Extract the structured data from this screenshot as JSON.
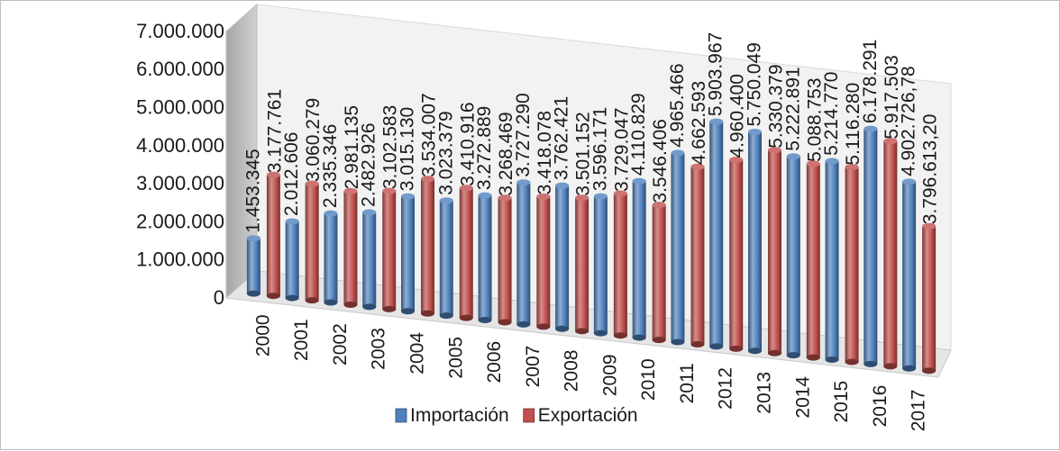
{
  "chart_data": {
    "type": "bar",
    "categories": [
      "2000",
      "2001",
      "2002",
      "2003",
      "2004",
      "2005",
      "2006",
      "2007",
      "2008",
      "2009",
      "2010",
      "2011",
      "2012",
      "2013",
      "2014",
      "2015",
      "2016",
      "2017"
    ],
    "series": [
      {
        "name": "Importación",
        "color": "#4f81bd",
        "values": [
          1453345,
          2012606,
          2335346,
          2482926,
          3015130,
          3023379,
          3272889,
          3727290,
          3762421,
          3596171,
          4110829,
          4965466,
          5903967,
          5750049,
          5222891,
          5214770,
          6178291,
          4902726.78
        ],
        "labels": [
          "1.453.345",
          "2.012.606",
          "2.335.346",
          "2.482.926",
          "3.015.130",
          "3.023.379",
          "3.272.889",
          "3.727.290",
          "3.762.421",
          "3.596.171",
          "4.110.829",
          "4.965.466",
          "5.903.967",
          "5.750.049",
          "5.222.891",
          "5.214.770",
          "6.178.291",
          "4.902.726,78"
        ]
      },
      {
        "name": "Exportación",
        "color": "#c0504d",
        "values": [
          3177761,
          3060279,
          2981135,
          3102583,
          3534007,
          3410916,
          3268469,
          3418078,
          3501152,
          3729047,
          3546406,
          4662593,
          4960400,
          5330379,
          5088753,
          5116280,
          5917503,
          3796613.2
        ],
        "labels": [
          "3.177.761",
          "3.060.279",
          "2.981.135",
          "3.102.583",
          "3.534.007",
          "3.410.916",
          "3.268.469",
          "3.418.078",
          "3.501.152",
          "3.729.047",
          "3.546.406",
          "4.662.593",
          "4.960.400",
          "5.330.379",
          "5.088.753",
          "5.116.280",
          "5.917.503",
          "3.796.613,20"
        ]
      }
    ],
    "yticks": [
      "0",
      "1.000.000",
      "2.000.000",
      "3.000.000",
      "4.000.000",
      "5.000.000",
      "6.000.000",
      "7.000.000"
    ],
    "ylim": [
      0,
      7000000
    ],
    "legend_position": "bottom",
    "grid": false
  }
}
